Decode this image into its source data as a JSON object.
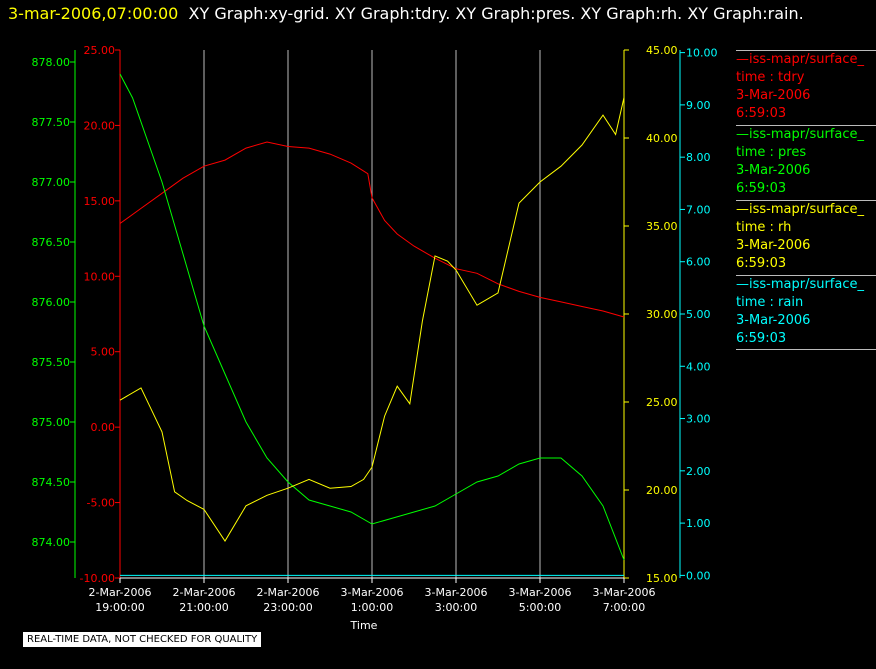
{
  "header": {
    "timestamp": "3-mar-2006,07:00:00",
    "graphs": "XY Graph:xy-grid.  XY Graph:tdry.  XY Graph:pres.  XY Graph:rh.  XY Graph:rain."
  },
  "footer": {
    "notice": "REAL-TIME DATA, NOT CHECKED FOR QUALITY"
  },
  "colors": {
    "tdry": "#ff0000",
    "pres": "#00ff00",
    "rh": "#ffff00",
    "rain": "#00ffff",
    "grid": "#bbbbbb"
  },
  "legend": [
    {
      "id": "tdry",
      "source": "—iss-mapr/surface_",
      "name": "time : tdry",
      "date": "3-Mar-2006",
      "time": "6:59:03"
    },
    {
      "id": "pres",
      "source": "—iss-mapr/surface_",
      "name": "time : pres",
      "date": "3-Mar-2006",
      "time": "6:59:03"
    },
    {
      "id": "rh",
      "source": "—iss-mapr/surface_",
      "name": "time : rh",
      "date": "3-Mar-2006",
      "time": "6:59:03"
    },
    {
      "id": "rain",
      "source": "—iss-mapr/surface_",
      "name": "time : rain",
      "date": "3-Mar-2006",
      "time": "6:59:03"
    }
  ],
  "chart_data": {
    "type": "line",
    "xlabel": "Time",
    "xlim": [
      0,
      12
    ],
    "x_ticks": [
      {
        "value": 0,
        "label": [
          "2-Mar-2006",
          "19:00:00"
        ]
      },
      {
        "value": 2,
        "label": [
          "2-Mar-2006",
          "21:00:00"
        ]
      },
      {
        "value": 4,
        "label": [
          "2-Mar-2006",
          "23:00:00"
        ]
      },
      {
        "value": 6,
        "label": [
          "3-Mar-2006",
          "1:00:00"
        ]
      },
      {
        "value": 8,
        "label": [
          "3-Mar-2006",
          "3:00:00"
        ]
      },
      {
        "value": 10,
        "label": [
          "3-Mar-2006",
          "5:00:00"
        ]
      },
      {
        "value": 12,
        "label": [
          "3-Mar-2006",
          "7:00:00"
        ]
      }
    ],
    "grid": "vertical",
    "axes": {
      "pres": {
        "lim": [
          873.7,
          878.1
        ],
        "ticks": [
          "874.00",
          "874.50",
          "875.00",
          "875.50",
          "876.00",
          "876.50",
          "877.00",
          "877.50",
          "878.00"
        ]
      },
      "tdry": {
        "lim": [
          -10,
          25
        ],
        "ticks": [
          "-10.00",
          "-5.00",
          "0.00",
          "5.00",
          "10.00",
          "15.00",
          "20.00",
          "25.00"
        ]
      },
      "rh": {
        "lim": [
          15,
          45
        ],
        "ticks": [
          "15.00",
          "20.00",
          "25.00",
          "30.00",
          "35.00",
          "40.00",
          "45.00"
        ]
      },
      "rain": {
        "lim": [
          -0.05,
          10.05
        ],
        "ticks": [
          "0.00",
          "1.00",
          "2.00",
          "3.00",
          "4.00",
          "5.00",
          "6.00",
          "7.00",
          "8.00",
          "9.00",
          "10.00"
        ]
      }
    },
    "series": [
      {
        "id": "tdry",
        "x": [
          0,
          0.5,
          1,
          1.5,
          2,
          2.5,
          3,
          3.5,
          4,
          4.5,
          5,
          5.5,
          5.9,
          6,
          6.3,
          6.6,
          7,
          7.5,
          8,
          8.5,
          9,
          9.5,
          10,
          10.5,
          11,
          11.5,
          12
        ],
        "values": [
          13.5,
          14.5,
          15.5,
          16.5,
          17.3,
          17.7,
          18.5,
          18.9,
          18.6,
          18.5,
          18.1,
          17.5,
          16.8,
          15.2,
          13.7,
          12.8,
          12,
          11.2,
          10.5,
          10.2,
          9.5,
          9,
          8.6,
          8.3,
          8,
          7.7,
          7.3
        ]
      },
      {
        "id": "pres",
        "x": [
          0,
          0.3,
          0.6,
          1,
          1.5,
          2,
          2.5,
          3,
          3.5,
          4,
          4.5,
          5,
          5.5,
          6,
          6.5,
          7,
          7.5,
          8,
          8.5,
          9,
          9.5,
          10,
          10.5,
          11,
          11.5,
          12
        ],
        "values": [
          877.9,
          877.7,
          877.4,
          877.0,
          876.4,
          875.8,
          875.4,
          875.0,
          874.7,
          874.5,
          874.35,
          874.3,
          874.25,
          874.15,
          874.2,
          874.25,
          874.3,
          874.4,
          874.5,
          874.55,
          874.65,
          874.7,
          874.7,
          874.55,
          874.3,
          873.85
        ]
      },
      {
        "id": "rh",
        "x": [
          0,
          0.5,
          0.8,
          1,
          1.3,
          1.6,
          2,
          2.5,
          3,
          3.5,
          4,
          4.5,
          5,
          5.5,
          5.8,
          6,
          6.3,
          6.6,
          6.9,
          7.2,
          7.5,
          7.8,
          8,
          8.5,
          9,
          9.5,
          10,
          10.5,
          11,
          11.5,
          11.8,
          12
        ],
        "values": [
          25.1,
          25.8,
          24.3,
          23.3,
          19.9,
          19.4,
          18.9,
          17.1,
          19.1,
          19.7,
          20.1,
          20.6,
          20.1,
          20.2,
          20.6,
          21.3,
          24.2,
          25.9,
          24.9,
          29.6,
          33.3,
          33.0,
          32.5,
          30.5,
          31.2,
          36.3,
          37.5,
          38.4,
          39.6,
          41.3,
          40.2,
          42.3
        ]
      },
      {
        "id": "rain",
        "x": [
          0,
          12
        ],
        "values": [
          0,
          0
        ]
      }
    ]
  }
}
